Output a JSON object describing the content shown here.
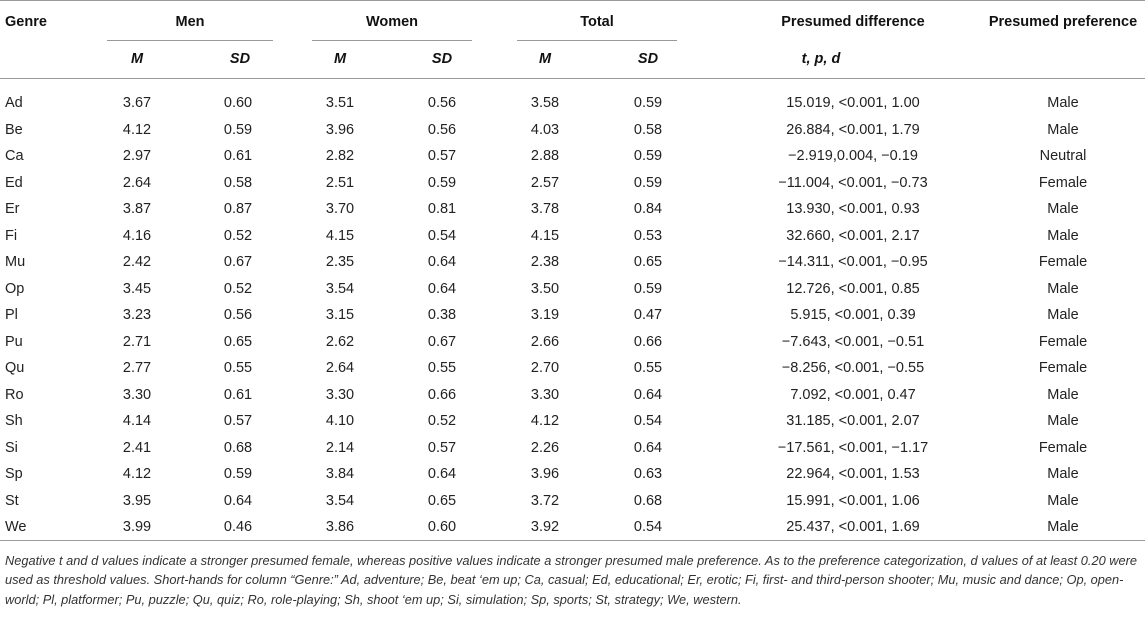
{
  "table": {
    "header": {
      "genre": "Genre",
      "groups": [
        "Men",
        "Women",
        "Total"
      ],
      "sub_m": "M",
      "sub_sd": "SD",
      "presumed_difference": "Presumed difference",
      "presumed_difference_sub": "t, p, d",
      "presumed_preference": "Presumed preference"
    },
    "rows": [
      {
        "genre": "Ad",
        "men_m": "3.67",
        "men_sd": "0.60",
        "women_m": "3.51",
        "women_sd": "0.56",
        "total_m": "3.58",
        "total_sd": "0.59",
        "diff": "15.019, <0.001, 1.00",
        "pref": "Male"
      },
      {
        "genre": "Be",
        "men_m": "4.12",
        "men_sd": "0.59",
        "women_m": "3.96",
        "women_sd": "0.56",
        "total_m": "4.03",
        "total_sd": "0.58",
        "diff": "26.884, <0.001, 1.79",
        "pref": "Male"
      },
      {
        "genre": "Ca",
        "men_m": "2.97",
        "men_sd": "0.61",
        "women_m": "2.82",
        "women_sd": "0.57",
        "total_m": "2.88",
        "total_sd": "0.59",
        "diff": "−2.919,0.004, −0.19",
        "pref": "Neutral"
      },
      {
        "genre": "Ed",
        "men_m": "2.64",
        "men_sd": "0.58",
        "women_m": "2.51",
        "women_sd": "0.59",
        "total_m": "2.57",
        "total_sd": "0.59",
        "diff": "−11.004, <0.001, −0.73",
        "pref": "Female"
      },
      {
        "genre": "Er",
        "men_m": "3.87",
        "men_sd": "0.87",
        "women_m": "3.70",
        "women_sd": "0.81",
        "total_m": "3.78",
        "total_sd": "0.84",
        "diff": "13.930, <0.001, 0.93",
        "pref": "Male"
      },
      {
        "genre": "Fi",
        "men_m": "4.16",
        "men_sd": "0.52",
        "women_m": "4.15",
        "women_sd": "0.54",
        "total_m": "4.15",
        "total_sd": "0.53",
        "diff": "32.660, <0.001, 2.17",
        "pref": "Male"
      },
      {
        "genre": "Mu",
        "men_m": "2.42",
        "men_sd": "0.67",
        "women_m": "2.35",
        "women_sd": "0.64",
        "total_m": "2.38",
        "total_sd": "0.65",
        "diff": "−14.311, <0.001, −0.95",
        "pref": "Female"
      },
      {
        "genre": "Op",
        "men_m": "3.45",
        "men_sd": "0.52",
        "women_m": "3.54",
        "women_sd": "0.64",
        "total_m": "3.50",
        "total_sd": "0.59",
        "diff": "12.726, <0.001, 0.85",
        "pref": "Male"
      },
      {
        "genre": "Pl",
        "men_m": "3.23",
        "men_sd": "0.56",
        "women_m": "3.15",
        "women_sd": "0.38",
        "total_m": "3.19",
        "total_sd": "0.47",
        "diff": "5.915, <0.001, 0.39",
        "pref": "Male"
      },
      {
        "genre": "Pu",
        "men_m": "2.71",
        "men_sd": "0.65",
        "women_m": "2.62",
        "women_sd": "0.67",
        "total_m": "2.66",
        "total_sd": "0.66",
        "diff": "−7.643, <0.001, −0.51",
        "pref": "Female"
      },
      {
        "genre": "Qu",
        "men_m": "2.77",
        "men_sd": "0.55",
        "women_m": "2.64",
        "women_sd": "0.55",
        "total_m": "2.70",
        "total_sd": "0.55",
        "diff": "−8.256, <0.001, −0.55",
        "pref": "Female"
      },
      {
        "genre": "Ro",
        "men_m": "3.30",
        "men_sd": "0.61",
        "women_m": "3.30",
        "women_sd": "0.66",
        "total_m": "3.30",
        "total_sd": "0.64",
        "diff": "7.092, <0.001, 0.47",
        "pref": "Male"
      },
      {
        "genre": "Sh",
        "men_m": "4.14",
        "men_sd": "0.57",
        "women_m": "4.10",
        "women_sd": "0.52",
        "total_m": "4.12",
        "total_sd": "0.54",
        "diff": "31.185, <0.001, 2.07",
        "pref": "Male"
      },
      {
        "genre": "Si",
        "men_m": "2.41",
        "men_sd": "0.68",
        "women_m": "2.14",
        "women_sd": "0.57",
        "total_m": "2.26",
        "total_sd": "0.64",
        "diff": "−17.561, <0.001, −1.17",
        "pref": "Female"
      },
      {
        "genre": "Sp",
        "men_m": "4.12",
        "men_sd": "0.59",
        "women_m": "3.84",
        "women_sd": "0.64",
        "total_m": "3.96",
        "total_sd": "0.63",
        "diff": "22.964, <0.001, 1.53",
        "pref": "Male"
      },
      {
        "genre": "St",
        "men_m": "3.95",
        "men_sd": "0.64",
        "women_m": "3.54",
        "women_sd": "0.65",
        "total_m": "3.72",
        "total_sd": "0.68",
        "diff": "15.991, <0.001, 1.06",
        "pref": "Male"
      },
      {
        "genre": "We",
        "men_m": "3.99",
        "men_sd": "0.46",
        "women_m": "3.86",
        "women_sd": "0.60",
        "total_m": "3.92",
        "total_sd": "0.54",
        "diff": "25.437, <0.001, 1.69",
        "pref": "Male"
      }
    ],
    "footnote": "Negative t and d values indicate a stronger presumed female, whereas positive values indicate a stronger presumed male preference. As to the preference categorization, d values of at least 0.20 were used as threshold values. Short-hands for column “Genre:” Ad, adventure; Be, beat ‘em up; Ca, casual; Ed, educational; Er, erotic; Fi, first- and third-person shooter; Mu, music and dance; Op, open-world; Pl, platformer; Pu, puzzle; Qu, quiz; Ro, role-playing; Sh, shoot ‘em up; Si, simulation; Sp, sports; St, strategy; We, western."
  }
}
